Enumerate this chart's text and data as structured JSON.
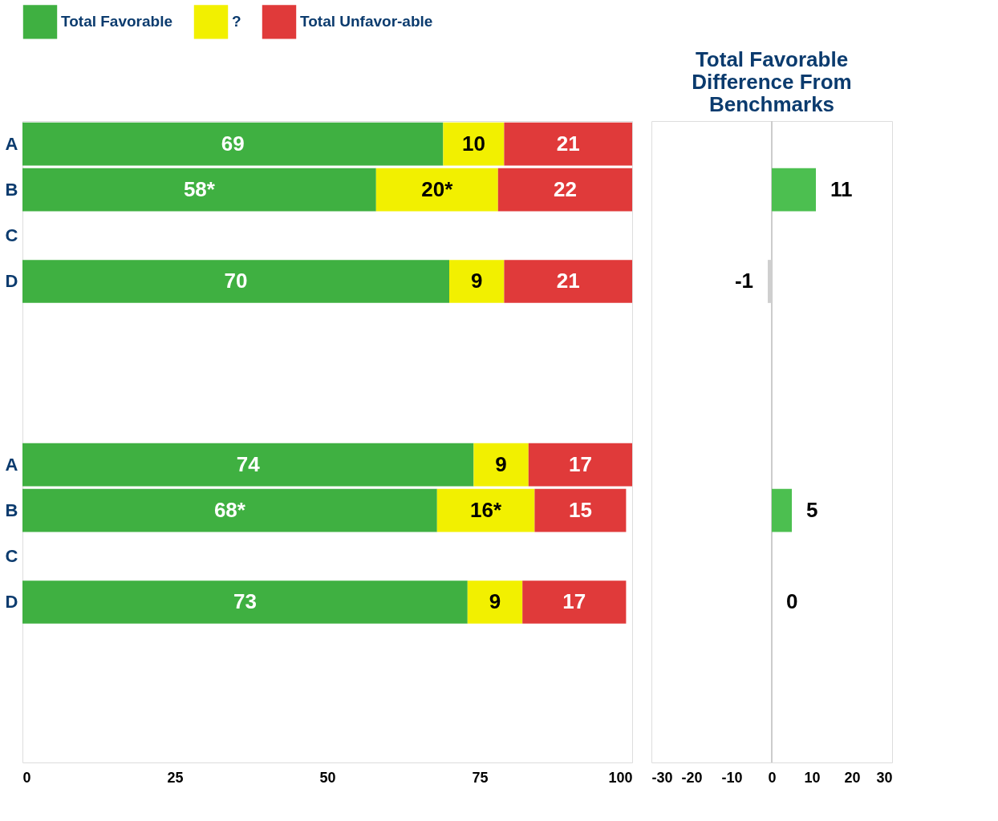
{
  "chart_data": [
    {
      "type": "bar",
      "orientation": "horizontal",
      "stacked": true,
      "categories": [
        "A",
        "B",
        "C",
        "D",
        null,
        null,
        null,
        "A",
        "B",
        "C",
        "D",
        null,
        null,
        null
      ],
      "series": [
        {
          "name": "Total Favorable",
          "color": "#3fb041",
          "values": [
            69,
            58,
            null,
            70,
            null,
            null,
            null,
            74,
            68,
            null,
            73,
            null,
            null,
            null
          ],
          "value_labels": [
            "69",
            "58*",
            null,
            "70",
            null,
            null,
            null,
            "74",
            "68*",
            null,
            "73",
            null,
            null,
            null
          ]
        },
        {
          "name": "?",
          "color": "#f2f000",
          "values": [
            10,
            20,
            null,
            9,
            null,
            null,
            null,
            9,
            16,
            null,
            9,
            null,
            null,
            null
          ],
          "value_labels": [
            "10",
            "20*",
            null,
            "9",
            null,
            null,
            null,
            "9",
            "16*",
            null,
            "9",
            null,
            null,
            null
          ]
        },
        {
          "name": "Total Unfavor-able",
          "color": "#e03a3a",
          "values": [
            21,
            22,
            null,
            21,
            null,
            null,
            null,
            17,
            15,
            null,
            17,
            null,
            null,
            null
          ],
          "value_labels": [
            "21",
            "22",
            null,
            "21",
            null,
            null,
            null,
            "17",
            "15",
            null,
            "17",
            null,
            null,
            null
          ]
        }
      ],
      "xlim": [
        0,
        100
      ],
      "xticks": [
        0,
        25,
        50,
        75,
        100
      ],
      "legend": "top",
      "grid": false
    },
    {
      "type": "bar",
      "orientation": "horizontal",
      "title": "Total Favorable Difference From Benchmarks",
      "categories": [
        null,
        null,
        null,
        null,
        null,
        null,
        null,
        null,
        null,
        null,
        null,
        null,
        null,
        null
      ],
      "values": [
        null,
        11,
        null,
        -1,
        null,
        null,
        null,
        null,
        5,
        null,
        0,
        null,
        null,
        null
      ],
      "colors": [
        null,
        "#4cbf50",
        null,
        "#cfcfcf",
        null,
        null,
        null,
        null,
        "#4cbf50",
        null,
        "#4cbf50",
        null,
        null,
        null
      ],
      "data_labels": true,
      "xlim": [
        -30,
        30
      ],
      "xticks": [
        -30,
        -20,
        -10,
        0,
        10,
        20,
        30
      ],
      "tick_labels": "x",
      "grid": false,
      "ref_lines": [
        {
          "axis": "x",
          "value": 0,
          "color": "#cccccc"
        }
      ]
    }
  ]
}
